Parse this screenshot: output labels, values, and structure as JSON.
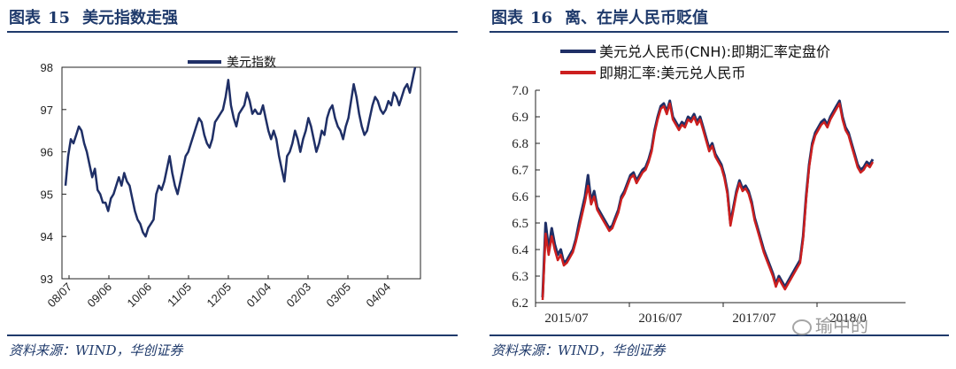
{
  "left": {
    "title_prefix": "图表",
    "title_num": "15",
    "title_text": "美元指数走强",
    "source": "资料来源：WIND，华创证券",
    "chart_data": {
      "type": "line",
      "series": [
        {
          "name": "美元指数",
          "color": "#1f2f66",
          "values": [
            95.2,
            95.9,
            96.3,
            96.2,
            96.4,
            96.6,
            96.5,
            96.2,
            96.0,
            95.7,
            95.4,
            95.6,
            95.1,
            95.0,
            94.8,
            94.8,
            94.6,
            94.9,
            95.0,
            95.2,
            95.4,
            95.2,
            95.5,
            95.3,
            95.2,
            94.9,
            94.6,
            94.4,
            94.3,
            94.1,
            94.0,
            94.2,
            94.3,
            94.4,
            95.0,
            95.2,
            95.1,
            95.3,
            95.6,
            95.9,
            95.5,
            95.2,
            95.0,
            95.3,
            95.6,
            95.9,
            96.0,
            96.2,
            96.4,
            96.6,
            96.8,
            96.7,
            96.4,
            96.2,
            96.1,
            96.3,
            96.7,
            96.8,
            96.9,
            97.0,
            97.3,
            97.7,
            97.1,
            96.8,
            96.6,
            96.9,
            97.0,
            97.1,
            97.4,
            97.2,
            96.9,
            97.0,
            96.9,
            96.9,
            97.1,
            96.8,
            96.5,
            96.3,
            96.5,
            96.3,
            95.9,
            95.6,
            95.3,
            95.9,
            96.0,
            96.2,
            96.5,
            96.3,
            96.0,
            96.3,
            96.5,
            96.8,
            96.6,
            96.3,
            96.0,
            96.2,
            96.5,
            96.4,
            96.8,
            97.0,
            97.1,
            96.8,
            96.6,
            96.5,
            96.3,
            96.6,
            96.8,
            97.2,
            97.6,
            97.3,
            96.9,
            96.6,
            96.4,
            96.5,
            96.8,
            97.1,
            97.3,
            97.2,
            97.0,
            96.9,
            97.0,
            97.2,
            97.1,
            97.4,
            97.3,
            97.1,
            97.3,
            97.5,
            97.6,
            97.4,
            97.7,
            98.0
          ]
        }
      ],
      "x_tick_labels": [
        "08/07",
        "09/06",
        "10/06",
        "11/05",
        "12/05",
        "01/04",
        "02/03",
        "03/05",
        "04/04"
      ],
      "y_ticks": [
        93,
        94,
        95,
        96,
        97,
        98
      ],
      "ylim": [
        93,
        98
      ],
      "legend": "top-center",
      "grid": false
    }
  },
  "right": {
    "title_prefix": "图表",
    "title_num": "16",
    "title_text": "离、在岸人民币贬值",
    "source": "资料来源：WIND，华创证券",
    "watermark": "瑜中的",
    "chart_data": {
      "type": "line",
      "series": [
        {
          "name": "美元兑人民币(CNH):即期汇率定盘价",
          "color": "#1f2f66",
          "values": [
            6.22,
            6.5,
            6.4,
            6.48,
            6.42,
            6.38,
            6.4,
            6.35,
            6.36,
            6.38,
            6.4,
            6.44,
            6.5,
            6.55,
            6.6,
            6.68,
            6.58,
            6.62,
            6.56,
            6.54,
            6.52,
            6.5,
            6.48,
            6.49,
            6.52,
            6.55,
            6.6,
            6.62,
            6.65,
            6.68,
            6.69,
            6.66,
            6.68,
            6.7,
            6.71,
            6.74,
            6.78,
            6.85,
            6.9,
            6.94,
            6.95,
            6.92,
            6.96,
            6.9,
            6.88,
            6.86,
            6.88,
            6.87,
            6.9,
            6.89,
            6.91,
            6.88,
            6.9,
            6.86,
            6.82,
            6.78,
            6.8,
            6.76,
            6.74,
            6.72,
            6.68,
            6.62,
            6.5,
            6.56,
            6.62,
            6.66,
            6.63,
            6.64,
            6.62,
            6.58,
            6.52,
            6.48,
            6.44,
            6.4,
            6.37,
            6.34,
            6.31,
            6.27,
            6.3,
            6.28,
            6.26,
            6.28,
            6.3,
            6.32,
            6.34,
            6.36,
            6.45,
            6.6,
            6.72,
            6.8,
            6.84,
            6.86,
            6.88,
            6.89,
            6.87,
            6.9,
            6.92,
            6.94,
            6.96,
            6.9,
            6.86,
            6.84,
            6.8,
            6.76,
            6.72,
            6.7,
            6.71,
            6.73,
            6.72,
            6.74
          ]
        },
        {
          "name": "即期汇率:美元兑人民币",
          "color": "#cc1f1f",
          "values": [
            6.21,
            6.46,
            6.38,
            6.45,
            6.4,
            6.36,
            6.38,
            6.34,
            6.35,
            6.37,
            6.39,
            6.43,
            6.48,
            6.53,
            6.58,
            6.64,
            6.57,
            6.6,
            6.55,
            6.53,
            6.51,
            6.49,
            6.47,
            6.48,
            6.51,
            6.54,
            6.59,
            6.61,
            6.64,
            6.67,
            6.68,
            6.65,
            6.67,
            6.69,
            6.7,
            6.73,
            6.77,
            6.84,
            6.89,
            6.93,
            6.94,
            6.91,
            6.95,
            6.89,
            6.87,
            6.85,
            6.87,
            6.86,
            6.89,
            6.88,
            6.9,
            6.87,
            6.89,
            6.85,
            6.81,
            6.77,
            6.79,
            6.75,
            6.73,
            6.71,
            6.67,
            6.61,
            6.49,
            6.55,
            6.61,
            6.65,
            6.62,
            6.63,
            6.61,
            6.57,
            6.51,
            6.47,
            6.43,
            6.39,
            6.36,
            6.33,
            6.3,
            6.26,
            6.29,
            6.27,
            6.25,
            6.27,
            6.29,
            6.31,
            6.33,
            6.35,
            6.44,
            6.59,
            6.71,
            6.79,
            6.83,
            6.85,
            6.87,
            6.88,
            6.86,
            6.89,
            6.91,
            6.93,
            6.95,
            6.89,
            6.85,
            6.83,
            6.79,
            6.75,
            6.71,
            6.69,
            6.7,
            6.72,
            6.71,
            6.73
          ]
        }
      ],
      "x_tick_labels": [
        "2015/07",
        "2016/07",
        "2017/07",
        "2018/0"
      ],
      "y_ticks": [
        "6.2",
        "6.3",
        "6.4",
        "6.5",
        "6.6",
        "6.7",
        "6.8",
        "6.9",
        "7.0"
      ],
      "ylim": [
        6.2,
        7.0
      ],
      "legend": "top-left",
      "grid": false
    }
  }
}
